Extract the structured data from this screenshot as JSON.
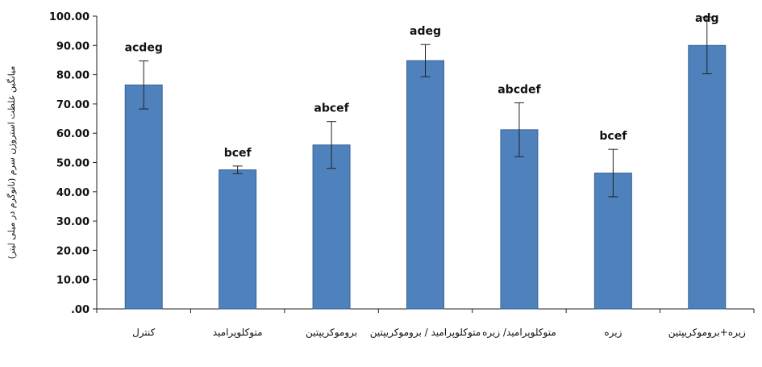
{
  "chart_data": {
    "type": "bar",
    "categories": [
      "کنترل",
      "متوکلوپرامید",
      "بروموکریپتین",
      "متوکلوپرامید / بروموکریپتین",
      "متوکلوپرامید/ زیره",
      "زیره",
      "زیره+بروموکریپتین"
    ],
    "values": [
      76.5,
      47.5,
      56.0,
      84.8,
      61.2,
      46.4,
      90.0
    ],
    "errors": [
      8.2,
      1.3,
      8.0,
      5.5,
      9.2,
      8.1,
      9.7
    ],
    "significance_labels": [
      "acdeg",
      "bcef",
      "abcef",
      "adeg",
      "abcdef",
      "bcef",
      "adg"
    ],
    "ylabel": "میانگین غلظت استروژن سرم (نانوگرم در میلی لیتر)",
    "xlabel": "",
    "ylim": [
      0,
      100
    ],
    "yticks": [
      ".00",
      "10.00",
      "20.00",
      "30.00",
      "40.00",
      "50.00",
      "60.00",
      "70.00",
      "80.00",
      "90.00",
      "100.00"
    ],
    "grid": false,
    "bar_color": "#4F81BD",
    "bar_edge_color": "#3A6496"
  }
}
